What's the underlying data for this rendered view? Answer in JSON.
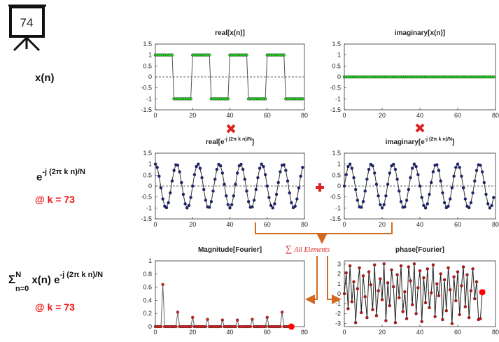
{
  "slide": {
    "frame": "74",
    "signal_label": "x(n)",
    "kernel_base": "e",
    "kernel_sup": "-j (2π k n)/N",
    "k_label_1": "@ k = 73",
    "sum_symbol": "Σ",
    "sum_sup": "N",
    "sum_sub": "n=0",
    "sum_body": " x(n) e",
    "sum_kernel_sup": "-j (2π k n)/N",
    "k_label_2": "@ k = 73",
    "annotation_symbol": "∑",
    "annotation": "All Elements"
  },
  "chart_data": [
    {
      "type": "line",
      "title": "real[x(n)]",
      "marker_color": "#22cc22",
      "line_color": "#555555",
      "zero_line": true,
      "xlim": [
        0,
        80
      ],
      "xticks": [
        0,
        20,
        40,
        60,
        80
      ],
      "ylim": [
        -1.5,
        1.5
      ],
      "yticks": [
        1.5,
        1,
        0.5,
        0,
        -0.5,
        -1,
        -1.5
      ],
      "x": [
        0,
        1,
        2,
        3,
        4,
        5,
        6,
        7,
        8,
        9,
        10,
        11,
        12,
        13,
        14,
        15,
        16,
        17,
        18,
        19,
        20,
        21,
        22,
        23,
        24,
        25,
        26,
        27,
        28,
        29,
        30,
        31,
        32,
        33,
        34,
        35,
        36,
        37,
        38,
        39,
        40,
        41,
        42,
        43,
        44,
        45,
        46,
        47,
        48,
        49,
        50,
        51,
        52,
        53,
        54,
        55,
        56,
        57,
        58,
        59,
        60,
        61,
        62,
        63,
        64,
        65,
        66,
        67,
        68,
        69,
        70,
        71,
        72,
        73,
        74,
        75,
        76,
        77,
        78,
        79
      ],
      "values": [
        1,
        1,
        1,
        1,
        1,
        1,
        1,
        1,
        1,
        1,
        -1,
        -1,
        -1,
        -1,
        -1,
        -1,
        -1,
        -1,
        -1,
        -1,
        1,
        1,
        1,
        1,
        1,
        1,
        1,
        1,
        1,
        1,
        -1,
        -1,
        -1,
        -1,
        -1,
        -1,
        -1,
        -1,
        -1,
        -1,
        1,
        1,
        1,
        1,
        1,
        1,
        1,
        1,
        1,
        1,
        -1,
        -1,
        -1,
        -1,
        -1,
        -1,
        -1,
        -1,
        -1,
        -1,
        1,
        1,
        1,
        1,
        1,
        1,
        1,
        1,
        1,
        1,
        -1,
        -1,
        -1,
        -1,
        -1,
        -1,
        -1,
        -1,
        -1,
        -1
      ]
    },
    {
      "type": "line",
      "title": "imaginary[x(n)]",
      "marker_color": "#22cc22",
      "line_color": "#22aa22",
      "zero_line": true,
      "xlim": [
        0,
        80
      ],
      "xticks": [
        0,
        20,
        40,
        60,
        80
      ],
      "ylim": [
        -1.5,
        1.5
      ],
      "yticks": [
        1.5,
        1,
        0.5,
        0,
        -0.5,
        -1,
        -1.5
      ],
      "x": [
        0,
        1,
        2,
        3,
        4,
        5,
        6,
        7,
        8,
        9,
        10,
        11,
        12,
        13,
        14,
        15,
        16,
        17,
        18,
        19,
        20,
        21,
        22,
        23,
        24,
        25,
        26,
        27,
        28,
        29,
        30,
        31,
        32,
        33,
        34,
        35,
        36,
        37,
        38,
        39,
        40,
        41,
        42,
        43,
        44,
        45,
        46,
        47,
        48,
        49,
        50,
        51,
        52,
        53,
        54,
        55,
        56,
        57,
        58,
        59,
        60,
        61,
        62,
        63,
        64,
        65,
        66,
        67,
        68,
        69,
        70,
        71,
        72,
        73,
        74,
        75,
        76,
        77,
        78,
        79
      ],
      "values": [
        0,
        0,
        0,
        0,
        0,
        0,
        0,
        0,
        0,
        0,
        0,
        0,
        0,
        0,
        0,
        0,
        0,
        0,
        0,
        0,
        0,
        0,
        0,
        0,
        0,
        0,
        0,
        0,
        0,
        0,
        0,
        0,
        0,
        0,
        0,
        0,
        0,
        0,
        0,
        0,
        0,
        0,
        0,
        0,
        0,
        0,
        0,
        0,
        0,
        0,
        0,
        0,
        0,
        0,
        0,
        0,
        0,
        0,
        0,
        0,
        0,
        0,
        0,
        0,
        0,
        0,
        0,
        0,
        0,
        0,
        0,
        0,
        0,
        0,
        0,
        0,
        0,
        0,
        0,
        0
      ]
    },
    {
      "type": "line",
      "title": "real[e",
      "title_superscript": "-j (2π k n)/N",
      "title_suffix": "]",
      "marker_color": "#1a237e",
      "line_color": "#333333",
      "zero_line": true,
      "xlim": [
        0,
        80
      ],
      "xticks": [
        0,
        20,
        40,
        60,
        80
      ],
      "ylim": [
        -1.5,
        1.5
      ],
      "yticks": [
        1.5,
        1,
        0.5,
        0,
        -0.5,
        -1,
        -1.5
      ],
      "x": [
        0,
        1,
        2,
        3,
        4,
        5,
        6,
        7,
        8,
        9,
        10,
        11,
        12,
        13,
        14,
        15,
        16,
        17,
        18,
        19,
        20,
        21,
        22,
        23,
        24,
        25,
        26,
        27,
        28,
        29,
        30,
        31,
        32,
        33,
        34,
        35,
        36,
        37,
        38,
        39,
        40,
        41,
        42,
        43,
        44,
        45,
        46,
        47,
        48,
        49,
        50,
        51,
        52,
        53,
        54,
        55,
        56,
        57,
        58,
        59,
        60,
        61,
        62,
        63,
        64,
        65,
        66,
        67,
        68,
        69,
        70,
        71,
        72,
        73,
        74,
        75,
        76,
        77,
        78,
        79
      ],
      "values": [
        1,
        0.85,
        0.45,
        -0.08,
        -0.59,
        -0.92,
        -0.99,
        -0.76,
        -0.31,
        0.23,
        0.71,
        0.97,
        0.95,
        0.65,
        0.16,
        -0.38,
        -0.81,
        -1,
        -0.89,
        -0.52,
        0,
        0.52,
        0.89,
        1,
        0.81,
        0.38,
        -0.16,
        -0.65,
        -0.95,
        -0.97,
        -0.71,
        -0.23,
        0.31,
        0.76,
        0.99,
        0.92,
        0.59,
        0.08,
        -0.45,
        -0.85,
        -1,
        -0.85,
        -0.45,
        0.08,
        0.59,
        0.92,
        0.99,
        0.76,
        0.31,
        -0.23,
        -0.71,
        -0.97,
        -0.95,
        -0.65,
        -0.16,
        0.38,
        0.81,
        1,
        0.89,
        0.52,
        0,
        -0.52,
        -0.89,
        -1,
        -0.81,
        -0.38,
        0.16,
        0.65,
        0.95,
        0.97,
        0.71,
        0.23,
        -0.31,
        -0.76,
        -0.99,
        -0.92,
        -0.59,
        -0.08,
        0.45,
        0.85
      ]
    },
    {
      "type": "line",
      "title": "imaginary[e",
      "title_superscript": "-j (2π k n)/N",
      "title_suffix": "]",
      "marker_color": "#1a237e",
      "line_color": "#333333",
      "zero_line": true,
      "xlim": [
        0,
        80
      ],
      "xticks": [
        0,
        20,
        40,
        60,
        80
      ],
      "ylim": [
        -1.5,
        1.5
      ],
      "yticks": [
        1.5,
        1,
        0.5,
        0,
        -0.5,
        -1,
        -1.5
      ],
      "x": [
        0,
        1,
        2,
        3,
        4,
        5,
        6,
        7,
        8,
        9,
        10,
        11,
        12,
        13,
        14,
        15,
        16,
        17,
        18,
        19,
        20,
        21,
        22,
        23,
        24,
        25,
        26,
        27,
        28,
        29,
        30,
        31,
        32,
        33,
        34,
        35,
        36,
        37,
        38,
        39,
        40,
        41,
        42,
        43,
        44,
        45,
        46,
        47,
        48,
        49,
        50,
        51,
        52,
        53,
        54,
        55,
        56,
        57,
        58,
        59,
        60,
        61,
        62,
        63,
        64,
        65,
        66,
        67,
        68,
        69,
        70,
        71,
        72,
        73,
        74,
        75,
        76,
        77,
        78,
        79
      ],
      "values": [
        0,
        0.52,
        0.89,
        1,
        0.81,
        0.38,
        -0.16,
        -0.65,
        -0.95,
        -0.97,
        -0.71,
        -0.23,
        0.31,
        0.76,
        0.99,
        0.92,
        0.59,
        0.08,
        -0.45,
        -0.85,
        -1,
        -0.85,
        -0.45,
        0.08,
        0.59,
        0.92,
        0.99,
        0.76,
        0.31,
        -0.23,
        -0.71,
        -0.97,
        -0.95,
        -0.65,
        -0.16,
        0.38,
        0.81,
        1,
        0.89,
        0.52,
        0,
        -0.52,
        -0.89,
        -1,
        -0.81,
        -0.38,
        0.16,
        0.65,
        0.95,
        0.97,
        0.71,
        0.23,
        -0.31,
        -0.76,
        -0.99,
        -0.92,
        -0.59,
        -0.08,
        0.45,
        0.85,
        1,
        0.85,
        0.45,
        -0.08,
        -0.59,
        -0.92,
        -0.99,
        -0.76,
        -0.31,
        0.23,
        0.71,
        0.97,
        0.95,
        0.65,
        0.16,
        -0.38,
        -0.81,
        -1,
        -0.89,
        -0.52
      ]
    },
    {
      "type": "line",
      "title": "Magnitude[Fourier]",
      "marker_color": "#dd2222",
      "line_color": "#666666",
      "zero_line": false,
      "highlight_color": "#ff0000",
      "xlim": [
        0,
        80
      ],
      "xticks": [
        0,
        20,
        40,
        60,
        80
      ],
      "ylim": [
        0,
        1
      ],
      "yticks": [
        1,
        0.8,
        0.6,
        0.4,
        0.2,
        0
      ],
      "x": [
        0,
        1,
        2,
        3,
        4,
        5,
        6,
        7,
        8,
        9,
        10,
        11,
        12,
        13,
        14,
        15,
        16,
        17,
        18,
        19,
        20,
        21,
        22,
        23,
        24,
        25,
        26,
        27,
        28,
        29,
        30,
        31,
        32,
        33,
        34,
        35,
        36,
        37,
        38,
        39,
        40,
        41,
        42,
        43,
        44,
        45,
        46,
        47,
        48,
        49,
        50,
        51,
        52,
        53,
        54,
        55,
        56,
        57,
        58,
        59,
        60,
        61,
        62,
        63,
        64,
        65,
        66,
        67,
        68,
        69,
        70,
        71,
        72,
        73
      ],
      "values": [
        0,
        0,
        0,
        0,
        0.64,
        0,
        0,
        0,
        0,
        0,
        0,
        0,
        0.22,
        0,
        0,
        0,
        0,
        0,
        0,
        0,
        0.14,
        0,
        0,
        0,
        0,
        0,
        0,
        0,
        0.11,
        0,
        0,
        0,
        0,
        0,
        0,
        0,
        0.1,
        0,
        0,
        0,
        0,
        0,
        0,
        0,
        0.1,
        0,
        0,
        0,
        0,
        0,
        0,
        0,
        0.11,
        0,
        0,
        0,
        0,
        0,
        0,
        0,
        0.14,
        0,
        0,
        0,
        0,
        0,
        0,
        0,
        0.22,
        0,
        0,
        0,
        0,
        0
      ]
    },
    {
      "type": "line",
      "title": "phase[Fourier]",
      "marker_color": "#cc1111",
      "line_color": "#222222",
      "zero_line": false,
      "highlight_color": "#ff0000",
      "xlim": [
        0,
        80
      ],
      "xticks": [
        0,
        20,
        40,
        60,
        80
      ],
      "ylim": [
        -3.3,
        3.3
      ],
      "yticks": [
        3,
        2,
        1,
        0,
        -1,
        -2,
        -3
      ],
      "x": [
        0,
        1,
        2,
        3,
        4,
        5,
        6,
        7,
        8,
        9,
        10,
        11,
        12,
        13,
        14,
        15,
        16,
        17,
        18,
        19,
        20,
        21,
        22,
        23,
        24,
        25,
        26,
        27,
        28,
        29,
        30,
        31,
        32,
        33,
        34,
        35,
        36,
        37,
        38,
        39,
        40,
        41,
        42,
        43,
        44,
        45,
        46,
        47,
        48,
        49,
        50,
        51,
        52,
        53,
        54,
        55,
        56,
        57,
        58,
        59,
        60,
        61,
        62,
        63,
        64,
        65,
        66,
        67,
        68,
        69,
        70,
        71,
        72,
        73
      ],
      "values": [
        0,
        2.1,
        -1.5,
        2.8,
        -0.8,
        1.2,
        -2.9,
        0.5,
        2.6,
        -1.9,
        1.8,
        -0.3,
        -2.4,
        2.2,
        0.9,
        -1.6,
        2.9,
        -2.2,
        0.3,
        1.5,
        -0.6,
        3,
        -2.7,
        1.1,
        -1.2,
        2.4,
        0.7,
        -2.9,
        1.9,
        -0.4,
        2.8,
        -1.8,
        0.2,
        -2.5,
        2.7,
        1.3,
        -1.1,
        3,
        -2,
        0.6,
        2.3,
        -2.8,
        1.6,
        -0.9,
        2.5,
        -1.4,
        0.1,
        2.9,
        -2.3,
        1,
        -0.2,
        2,
        -2.6,
        1.4,
        -1.7,
        2.6,
        0.4,
        -3,
        1.7,
        -0.7,
        2.2,
        -2.1,
        0.8,
        2.7,
        -1.3,
        1.9,
        -2.4,
        0.3,
        2.5,
        -0.5,
        1.2,
        -2.6,
        -2.5,
        0.15
      ]
    }
  ]
}
